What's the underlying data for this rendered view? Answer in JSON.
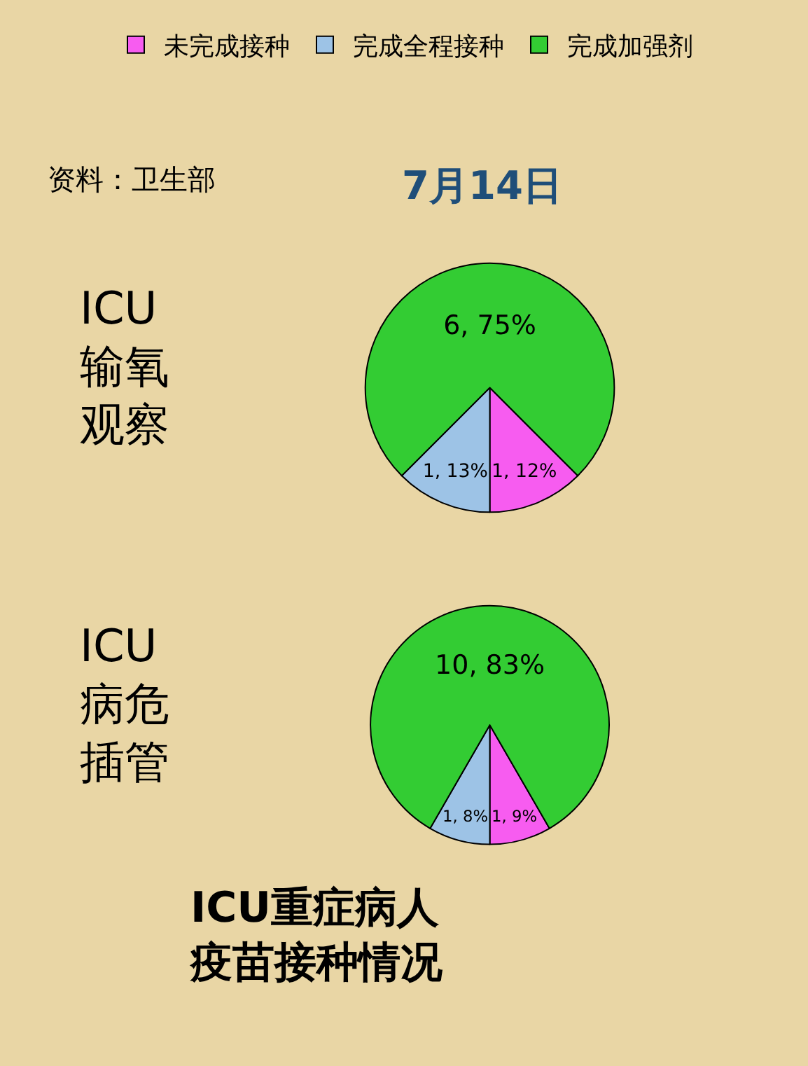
{
  "chart_data": [
    {
      "type": "pie",
      "title": "7月14日",
      "ylabel": "ICU输氧观察",
      "annotations": [
        "资料：卫生部"
      ],
      "legend": "top",
      "categories": [
        "未完成接种",
        "完成全程接种",
        "完成加强剂"
      ],
      "values": [
        1,
        1,
        6
      ],
      "value_labels": [
        "1, 12%",
        "1, 13%",
        "6, 75%"
      ],
      "colors": [
        "#f75cf0",
        "#9dc3e6",
        "#33cc33"
      ]
    },
    {
      "type": "pie",
      "ylabel": "ICU病危插管",
      "annotations": [
        "ICU重症病人疫苗接种情况"
      ],
      "categories": [
        null,
        null,
        null
      ],
      "values": [
        1,
        1,
        10
      ],
      "value_labels": [
        "1, 9%",
        "1, 8%",
        "10, 83%"
      ],
      "colors": [
        "#f75cf0",
        "#9dc3e6",
        "#33cc33"
      ]
    }
  ]
}
